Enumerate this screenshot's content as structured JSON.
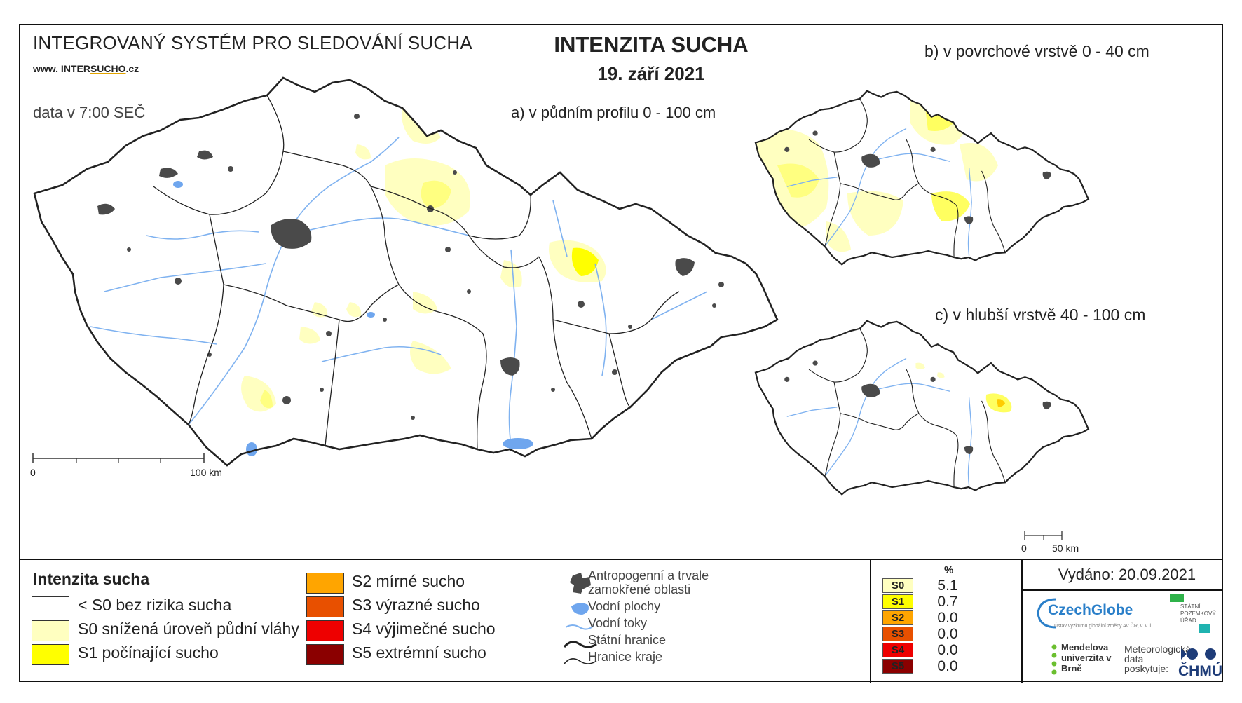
{
  "header": {
    "system_title": "INTEGROVANÝ SYSTÉM PRO SLEDOVÁNÍ SUCHA",
    "website_prefix": "www. INTER",
    "website_underlined": "SUCHO",
    "website_suffix": ".cz",
    "data_time": "data v 7:00 SEČ",
    "map_title": "INTENZITA SUCHA",
    "map_date": "19. září 2021"
  },
  "maps": {
    "a_label": "a) v půdním profilu 0 - 100 cm",
    "b_label": "b) v povrchové vrstvě 0 - 40 cm",
    "c_label": "c) v hlubší vrstvě 40 - 100 cm",
    "scale_main": {
      "start": "0",
      "end": "100 km"
    },
    "scale_small": {
      "start": "0",
      "end": "50 km"
    }
  },
  "legend": {
    "title": "Intenzita sucha",
    "classes": [
      {
        "label": "< S0 bez rizika sucha",
        "color": "#ffffff"
      },
      {
        "label": "S0 snížená úroveň půdní vláhy",
        "color": "#ffffc0"
      },
      {
        "label": "S1 počínající sucho",
        "color": "#ffff00"
      },
      {
        "label": "S2 mírné sucho",
        "color": "#ffa500"
      },
      {
        "label": "S3 výrazné sucho",
        "color": "#e85000"
      },
      {
        "label": "S4 výjimečné sucho",
        "color": "#ee0000"
      },
      {
        "label": "S5 extrémní sucho",
        "color": "#8b0000"
      }
    ],
    "map_symbols": {
      "anthropogenic": "Antropogenní a trvale zamokřené oblasti",
      "water_areas": "Vodní plochy",
      "rivers": "Vodní toky",
      "state_border": "Státní hranice",
      "region_border": "Hranice kraje"
    }
  },
  "stats": {
    "header": "%",
    "rows": [
      {
        "code": "S0",
        "value": "5.1",
        "color": "#ffffc0"
      },
      {
        "code": "S1",
        "value": "0.7",
        "color": "#ffff00"
      },
      {
        "code": "S2",
        "value": "0.0",
        "color": "#ffa500"
      },
      {
        "code": "S3",
        "value": "0.0",
        "color": "#e85000"
      },
      {
        "code": "S4",
        "value": "0.0",
        "color": "#ee0000"
      },
      {
        "code": "S5",
        "value": "0.0",
        "color": "#8b0000"
      }
    ]
  },
  "footer": {
    "issued": "Vydáno: 20.09.2021",
    "czechglobe": "CzechGlobe",
    "czechglobe_sub": "Ústav výzkumu globální změny AV ČR, v. v. i.",
    "spu": "STÁTNÍ POZEMKOVÝ ÚŘAD",
    "mendel": "Mendelova univerzita v Brně",
    "meteo": "Meteorologická data poskytuje:",
    "chmu": "ČHMÚ"
  },
  "colors": {
    "s0": "#ffffc0",
    "s1": "#ffff00",
    "urban": "#4a4a4a",
    "river": "#7fb2f0",
    "border": "#222222"
  }
}
